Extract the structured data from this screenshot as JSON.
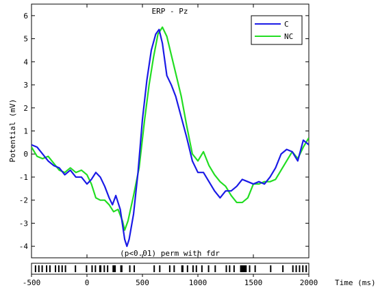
{
  "chart_data": {
    "type": "line",
    "title": "ERP - Pz",
    "xlabel": "Time (ms)",
    "ylabel": "Potential (mV)",
    "xlim": [
      -500,
      2000
    ],
    "ylim": [
      -4.5,
      6.5
    ],
    "xticks": [
      -500,
      0,
      500,
      1000,
      1500,
      2000
    ],
    "yticks": [
      -4,
      -3,
      -2,
      -1,
      0,
      1,
      2,
      3,
      4,
      5,
      6
    ],
    "grid": false,
    "legend_position": "top-right",
    "series": [
      {
        "name": "C",
        "color": "#1a1ae6",
        "points": [
          [
            -500,
            0.4
          ],
          [
            -450,
            0.3
          ],
          [
            -400,
            0.0
          ],
          [
            -350,
            -0.3
          ],
          [
            -300,
            -0.5
          ],
          [
            -250,
            -0.6
          ],
          [
            -200,
            -0.9
          ],
          [
            -150,
            -0.7
          ],
          [
            -100,
            -1.0
          ],
          [
            -50,
            -1.0
          ],
          [
            0,
            -1.3
          ],
          [
            40,
            -1.1
          ],
          [
            80,
            -0.8
          ],
          [
            120,
            -1.0
          ],
          [
            160,
            -1.4
          ],
          [
            200,
            -1.9
          ],
          [
            230,
            -2.2
          ],
          [
            260,
            -1.8
          ],
          [
            300,
            -2.4
          ],
          [
            340,
            -3.7
          ],
          [
            360,
            -4.0
          ],
          [
            380,
            -3.7
          ],
          [
            420,
            -2.6
          ],
          [
            460,
            -0.8
          ],
          [
            500,
            1.5
          ],
          [
            540,
            3.2
          ],
          [
            580,
            4.5
          ],
          [
            620,
            5.2
          ],
          [
            650,
            5.4
          ],
          [
            680,
            4.8
          ],
          [
            720,
            3.4
          ],
          [
            760,
            3.0
          ],
          [
            800,
            2.5
          ],
          [
            850,
            1.6
          ],
          [
            900,
            0.7
          ],
          [
            950,
            -0.3
          ],
          [
            1000,
            -0.8
          ],
          [
            1050,
            -0.8
          ],
          [
            1100,
            -1.2
          ],
          [
            1150,
            -1.6
          ],
          [
            1200,
            -1.9
          ],
          [
            1250,
            -1.6
          ],
          [
            1300,
            -1.6
          ],
          [
            1350,
            -1.4
          ],
          [
            1400,
            -1.1
          ],
          [
            1450,
            -1.2
          ],
          [
            1500,
            -1.3
          ],
          [
            1550,
            -1.2
          ],
          [
            1600,
            -1.3
          ],
          [
            1650,
            -1.0
          ],
          [
            1700,
            -0.6
          ],
          [
            1750,
            0.0
          ],
          [
            1800,
            0.2
          ],
          [
            1850,
            0.1
          ],
          [
            1900,
            -0.3
          ],
          [
            1950,
            0.6
          ],
          [
            2000,
            0.4
          ]
        ]
      },
      {
        "name": "NC",
        "color": "#22dd22",
        "points": [
          [
            -500,
            0.3
          ],
          [
            -450,
            -0.1
          ],
          [
            -400,
            -0.2
          ],
          [
            -350,
            -0.1
          ],
          [
            -300,
            -0.4
          ],
          [
            -250,
            -0.7
          ],
          [
            -200,
            -0.8
          ],
          [
            -150,
            -0.6
          ],
          [
            -100,
            -0.8
          ],
          [
            -50,
            -0.7
          ],
          [
            0,
            -0.9
          ],
          [
            40,
            -1.3
          ],
          [
            80,
            -1.9
          ],
          [
            120,
            -2.0
          ],
          [
            160,
            -2.0
          ],
          [
            200,
            -2.2
          ],
          [
            240,
            -2.5
          ],
          [
            280,
            -2.4
          ],
          [
            320,
            -2.9
          ],
          [
            340,
            -3.3
          ],
          [
            370,
            -2.9
          ],
          [
            420,
            -1.8
          ],
          [
            470,
            -0.6
          ],
          [
            520,
            1.5
          ],
          [
            560,
            3.0
          ],
          [
            600,
            4.2
          ],
          [
            640,
            5.2
          ],
          [
            680,
            5.5
          ],
          [
            720,
            5.1
          ],
          [
            760,
            4.3
          ],
          [
            800,
            3.5
          ],
          [
            850,
            2.5
          ],
          [
            900,
            1.2
          ],
          [
            950,
            0.0
          ],
          [
            1000,
            -0.3
          ],
          [
            1050,
            0.1
          ],
          [
            1100,
            -0.5
          ],
          [
            1150,
            -0.9
          ],
          [
            1200,
            -1.2
          ],
          [
            1250,
            -1.4
          ],
          [
            1300,
            -1.8
          ],
          [
            1350,
            -2.1
          ],
          [
            1400,
            -2.1
          ],
          [
            1450,
            -1.9
          ],
          [
            1500,
            -1.3
          ],
          [
            1550,
            -1.3
          ],
          [
            1600,
            -1.2
          ],
          [
            1650,
            -1.2
          ],
          [
            1700,
            -1.1
          ],
          [
            1750,
            -0.7
          ],
          [
            1800,
            -0.3
          ],
          [
            1850,
            0.1
          ],
          [
            1900,
            -0.2
          ],
          [
            1950,
            0.3
          ],
          [
            2000,
            0.7
          ]
        ]
      }
    ],
    "annotation": "(p<0.01) perm with fdr",
    "significance_intervals": [
      [
        -470,
        -460
      ],
      [
        -440,
        -430
      ],
      [
        -410,
        -400
      ],
      [
        -370,
        -360
      ],
      [
        -340,
        -330
      ],
      [
        -290,
        -280
      ],
      [
        -260,
        -250
      ],
      [
        -230,
        -220
      ],
      [
        -200,
        -190
      ],
      [
        -110,
        -100
      ],
      [
        -10,
        0
      ],
      [
        40,
        50
      ],
      [
        70,
        80
      ],
      [
        110,
        130
      ],
      [
        150,
        160
      ],
      [
        180,
        190
      ],
      [
        230,
        260
      ],
      [
        300,
        320
      ],
      [
        380,
        390
      ],
      [
        420,
        430
      ],
      [
        600,
        610
      ],
      [
        650,
        660
      ],
      [
        740,
        750
      ],
      [
        780,
        790
      ],
      [
        850,
        870
      ],
      [
        900,
        910
      ],
      [
        950,
        960
      ],
      [
        980,
        990
      ],
      [
        1030,
        1040
      ],
      [
        1090,
        1100
      ],
      [
        1150,
        1160
      ],
      [
        1250,
        1260
      ],
      [
        1280,
        1290
      ],
      [
        1320,
        1330
      ],
      [
        1380,
        1440
      ],
      [
        1460,
        1470
      ],
      [
        1510,
        1520
      ],
      [
        1650,
        1660
      ],
      [
        1760,
        1770
      ],
      [
        1850,
        1860
      ],
      [
        1880,
        1890
      ],
      [
        1910,
        1920
      ],
      [
        1940,
        1950
      ],
      [
        1970,
        1980
      ]
    ]
  }
}
